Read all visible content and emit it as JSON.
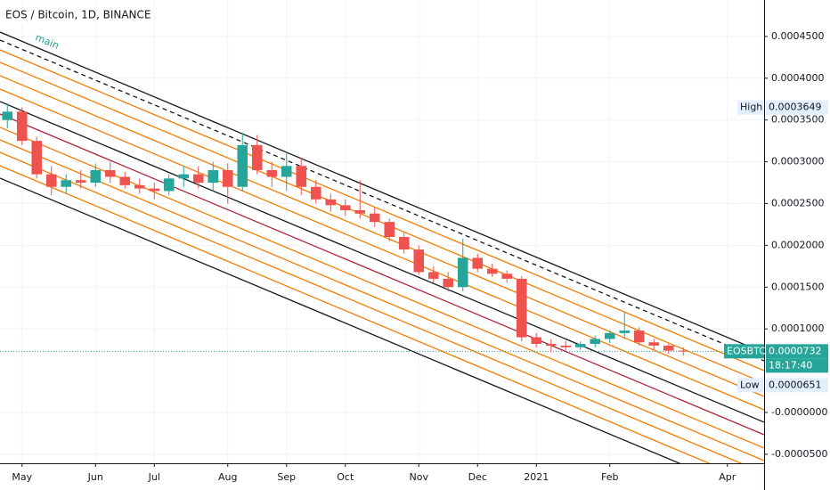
{
  "chart_data": {
    "type": "candlestick",
    "title": "EOS / Bitcoin, 1D, BINANCE",
    "annotation": "main",
    "categories": [
      null,
      "May",
      null,
      null,
      null,
      null,
      "Jun",
      null,
      null,
      null,
      "Jul",
      null,
      null,
      null,
      null,
      "Aug",
      null,
      null,
      null,
      "Sep",
      null,
      null,
      null,
      "Oct",
      null,
      null,
      null,
      null,
      "Nov",
      null,
      null,
      null,
      "Dec",
      null,
      null,
      null,
      "2021",
      null,
      null,
      null,
      null,
      "Feb",
      null,
      null,
      null,
      null,
      null,
      null,
      null,
      "Apr",
      null,
      null
    ],
    "open": [
      0.00035,
      0.00036,
      0.000325,
      0.000285,
      0.00027,
      0.000278,
      0.000275,
      0.00029,
      0.000282,
      0.000272,
      0.000268,
      0.000265,
      0.00028,
      0.000285,
      0.000275,
      0.00029,
      0.00027,
      0.00032,
      0.00029,
      0.000282,
      0.000295,
      0.00027,
      0.000255,
      0.000248,
      0.000242,
      0.000238,
      0.000228,
      0.00021,
      0.000195,
      0.000168,
      0.00016,
      0.00015,
      0.000185,
      0.000172,
      0.000166,
      0.00016,
      9e-05,
      8.2e-05,
      8e-05,
      7.8e-05,
      8.2e-05,
      8.8e-05,
      9.5e-05,
      9.8e-05,
      8.4e-05,
      8e-05,
      7.4e-05,
      null,
      null,
      null,
      null,
      null
    ],
    "high": [
      0.00037,
      0.000365,
      0.00033,
      0.000295,
      0.000285,
      0.00029,
      0.000298,
      0.0003,
      0.000288,
      0.00028,
      0.000275,
      0.000285,
      0.000295,
      0.000295,
      0.0003,
      0.000298,
      0.000335,
      0.000332,
      0.0003,
      0.00031,
      0.000305,
      0.000278,
      0.000262,
      0.000255,
      0.000278,
      0.000245,
      0.000232,
      0.000215,
      0.0002,
      0.000175,
      0.000168,
      0.000208,
      0.00019,
      0.000178,
      0.00017,
      0.000163,
      9.5e-05,
      8.8e-05,
      8.6e-05,
      8.5e-05,
      9.2e-05,
      9.8e-05,
      0.00012,
      0.000102,
      8.8e-05,
      8.2e-05,
      7.8e-05,
      null,
      null,
      null,
      null,
      null
    ],
    "low": [
      0.00034,
      0.00032,
      0.00028,
      0.00026,
      0.000262,
      0.000268,
      0.00027,
      0.000275,
      0.000268,
      0.000262,
      0.000255,
      0.00026,
      0.00027,
      0.000268,
      0.000265,
      0.00025,
      0.000265,
      0.000285,
      0.00027,
      0.000265,
      0.00026,
      0.00025,
      0.00024,
      0.000235,
      0.000232,
      0.000222,
      0.000205,
      0.00019,
      0.000165,
      0.000155,
      0.000145,
      0.000145,
      0.000168,
      0.000162,
      0.000155,
      8.5e-05,
      7.8e-05,
      7.2e-05,
      7.4e-05,
      7.5e-05,
      7.8e-05,
      8.3e-05,
      8.8e-05,
      8e-05,
      7.5e-05,
      7e-05,
      6.8e-05,
      null,
      null,
      null,
      null,
      null
    ],
    "close": [
      0.00036,
      0.000325,
      0.000285,
      0.00027,
      0.000278,
      0.000275,
      0.00029,
      0.000282,
      0.000272,
      0.000268,
      0.000265,
      0.00028,
      0.000285,
      0.000275,
      0.00029,
      0.00027,
      0.00032,
      0.00029,
      0.000282,
      0.000295,
      0.00027,
      0.000255,
      0.000248,
      0.000242,
      0.000238,
      0.000228,
      0.00021,
      0.000195,
      0.000168,
      0.00016,
      0.00015,
      0.000185,
      0.000172,
      0.000166,
      0.00016,
      9e-05,
      8.2e-05,
      8e-05,
      7.8e-05,
      8.2e-05,
      8.8e-05,
      9.5e-05,
      9.8e-05,
      8.4e-05,
      8e-05,
      7.4e-05,
      7.3e-05,
      null,
      null,
      null,
      null,
      null
    ],
    "up_color": "#26a69a",
    "down_color": "#ef5350",
    "ylim": [
      -6.08e-05,
      0.0004936
    ],
    "yticks": [
      {
        "value": 0.00045,
        "label": "0.0004500"
      },
      {
        "value": 0.0004,
        "label": "0.0004000"
      },
      {
        "value": 0.00035,
        "label": "0.0003500"
      },
      {
        "value": 0.0003,
        "label": "0.0003000"
      },
      {
        "value": 0.00025,
        "label": "0.0002500"
      },
      {
        "value": 0.0002,
        "label": "0.0002000"
      },
      {
        "value": 0.00015,
        "label": "0.0001500"
      },
      {
        "value": 0.0001,
        "label": "0.0001000"
      },
      {
        "value": 0,
        "label": "-0.0000000"
      },
      {
        "value": -5e-05,
        "label": "-0.0000500"
      }
    ],
    "grid": true,
    "channel_lines": [
      {
        "color": "#131722",
        "dashed": false,
        "values": [
          0.0004552,
          7.14e-05
        ]
      },
      {
        "color": "#131722",
        "dashed": true,
        "values": [
          0.0004456,
          6.18e-05
        ]
      },
      {
        "color": "#f57c00",
        "dashed": false,
        "values": [
          0.0004339,
          5.01e-05
        ]
      },
      {
        "color": "#f57c00",
        "dashed": false,
        "values": [
          0.000419,
          3.52e-05
        ]
      },
      {
        "color": "#f57c00",
        "dashed": false,
        "values": [
          0.000403,
          1.92e-05
        ]
      },
      {
        "color": "#f57c00",
        "dashed": false,
        "values": [
          0.000387,
          3.2e-06
        ]
      },
      {
        "color": "#131722",
        "dashed": false,
        "values": [
          0.0003721,
          -1.17e-05
        ]
      },
      {
        "color": "#b2283a",
        "dashed": false,
        "values": [
          0.0003571,
          -2.67e-05
        ]
      },
      {
        "color": "#f57c00",
        "dashed": false,
        "values": [
          0.0003412,
          -4.26e-05
        ]
      },
      {
        "color": "#f57c00",
        "dashed": false,
        "values": [
          0.0003262,
          -5.76e-05
        ]
      },
      {
        "color": "#f57c00",
        "dashed": false,
        "values": [
          0.0003113,
          -7.25e-05
        ]
      },
      {
        "color": "#f57c00",
        "dashed": false,
        "values": [
          0.0002953,
          -8.85e-05
        ]
      },
      {
        "color": "#131722",
        "dashed": false,
        "values": [
          0.0002804,
          -0.0001034
        ]
      }
    ],
    "high_marker": {
      "label": "High",
      "value": 0.0003649
    },
    "low_marker": {
      "label": "Low",
      "value": 6.51e-05
    },
    "last_price": {
      "label": "EOSBTC",
      "value": 7.32e-05,
      "countdown": "18:17:40",
      "color": "#26a69a"
    }
  }
}
